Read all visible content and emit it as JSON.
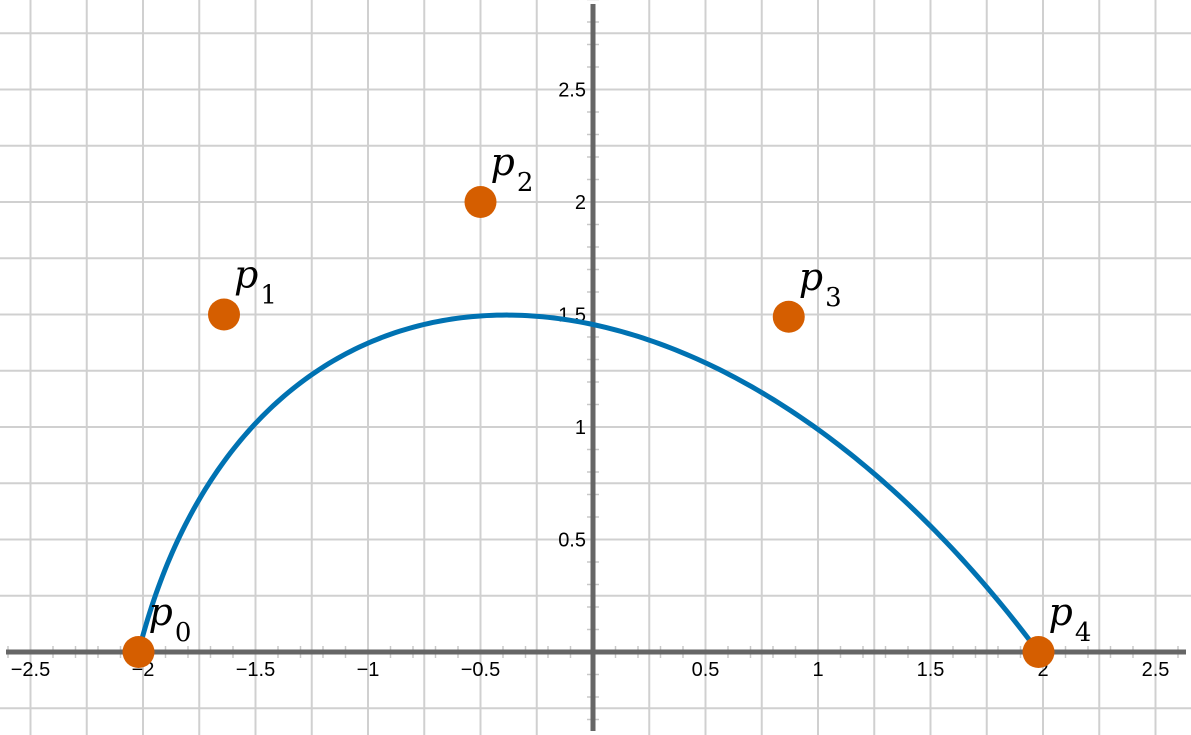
{
  "chart_data": {
    "type": "scatter",
    "title": "",
    "xlabel": "",
    "ylabel": "",
    "xlim": [
      -2.6,
      2.6
    ],
    "ylim": [
      -0.35,
      2.85
    ],
    "grid": true,
    "x_ticks": [
      {
        "value": -2.5,
        "label": "-2.5"
      },
      {
        "value": -2,
        "label": "-2"
      },
      {
        "value": -1.5,
        "label": "-1.5"
      },
      {
        "value": -1,
        "label": "-1"
      },
      {
        "value": -0.5,
        "label": "-0.5"
      },
      {
        "value": 0.5,
        "label": "0.5"
      },
      {
        "value": 1,
        "label": "1"
      },
      {
        "value": 1.5,
        "label": "1.5"
      },
      {
        "value": 2,
        "label": "2"
      },
      {
        "value": 2.5,
        "label": "2.5"
      }
    ],
    "y_ticks": [
      {
        "value": 0.5,
        "label": "0.5"
      },
      {
        "value": 1,
        "label": "1"
      },
      {
        "value": 1.5,
        "label": "1.5"
      },
      {
        "value": 2,
        "label": "2"
      },
      {
        "value": 2.5,
        "label": "2.5"
      }
    ],
    "control_points": [
      {
        "label": "p",
        "sub": "0",
        "x": -2.02,
        "y": 0.0
      },
      {
        "label": "p",
        "sub": "1",
        "x": -1.64,
        "y": 1.5
      },
      {
        "label": "p",
        "sub": "2",
        "x": -0.5,
        "y": 2.0
      },
      {
        "label": "p",
        "sub": "3",
        "x": 0.87,
        "y": 1.49
      },
      {
        "label": "p",
        "sub": "4",
        "x": 1.98,
        "y": 0.0
      }
    ],
    "curve": {
      "kind": "bezier",
      "color": "#0072b2",
      "points": [
        {
          "x": -2.02,
          "y": 0.0
        },
        {
          "x": -1.64,
          "y": 1.5
        },
        {
          "x": -0.5,
          "y": 2.0
        },
        {
          "x": 0.87,
          "y": 1.49
        },
        {
          "x": 1.98,
          "y": 0.0
        }
      ]
    },
    "point_color": "#d55e00"
  }
}
